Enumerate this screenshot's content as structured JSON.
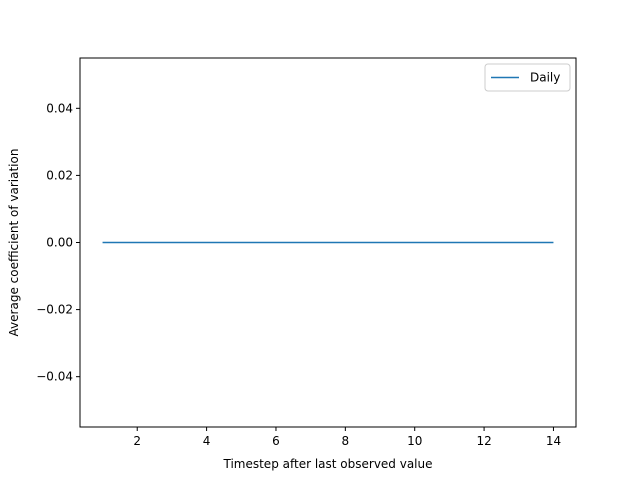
{
  "chart_data": {
    "type": "line",
    "title": "",
    "xlabel": "Timestep after last observed value",
    "ylabel": "Average coefficient of variation",
    "xlim": [
      0.35,
      14.65
    ],
    "ylim": [
      -0.055,
      0.055
    ],
    "xticks": [
      2,
      4,
      6,
      8,
      10,
      12,
      14
    ],
    "xtick_labels": [
      "2",
      "4",
      "6",
      "8",
      "10",
      "12",
      "14"
    ],
    "yticks": [
      -0.04,
      -0.02,
      0.0,
      0.02,
      0.04
    ],
    "ytick_labels": [
      "−0.04",
      "−0.02",
      "0.00",
      "0.02",
      "0.04"
    ],
    "grid": false,
    "legend_position": "top-right",
    "series": [
      {
        "name": "Daily",
        "color": "#1f77b4",
        "x": [
          1,
          2,
          3,
          4,
          5,
          6,
          7,
          8,
          9,
          10,
          11,
          12,
          13,
          14
        ],
        "y": [
          0,
          0,
          0,
          0,
          0,
          0,
          0,
          0,
          0,
          0,
          0,
          0,
          0,
          0
        ]
      }
    ]
  }
}
